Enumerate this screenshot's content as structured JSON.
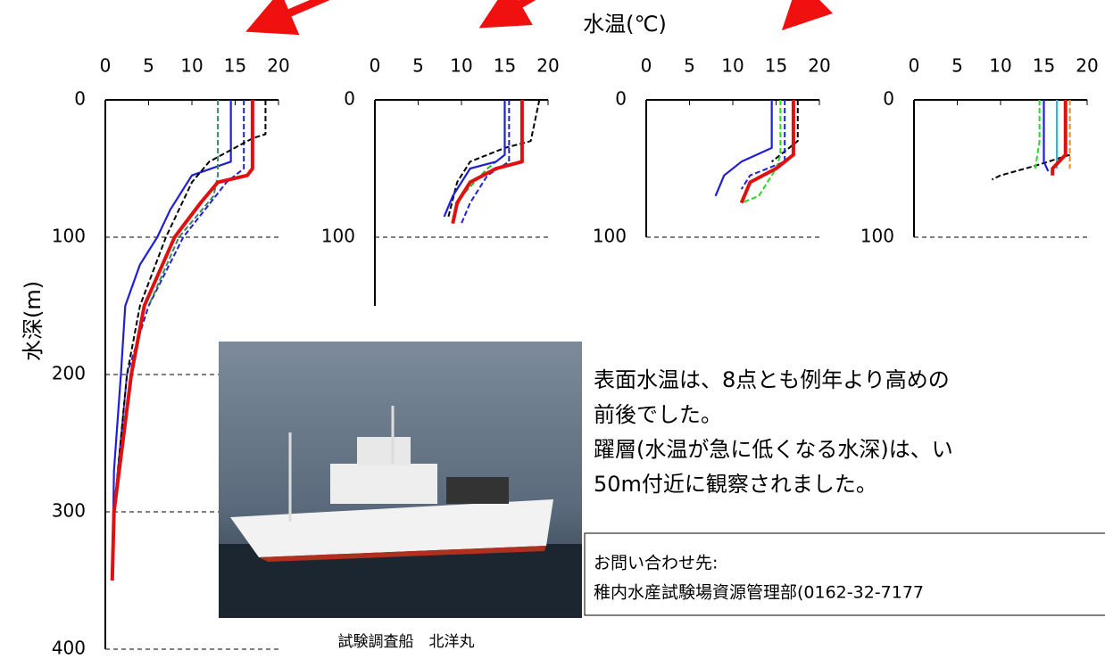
{
  "xlabel": "水温(℃)",
  "ylabel": "水深(m)",
  "caption": "試験調査船　北洋丸",
  "note": [
    "表面水温は、8点とも例年より高めの",
    "前後でした。",
    "躍層(水温が急に低くなる水深)は、い",
    "50m付近に観察されました。"
  ],
  "contact": {
    "title": "お問い合わせ先:",
    "body": "稚内水産試験場資源管理部(0162-32-7177"
  },
  "chart_data": [
    {
      "type": "line",
      "xlim": [
        0,
        20
      ],
      "xticks": [
        0,
        5,
        10,
        15,
        20
      ],
      "ylim": [
        0,
        400
      ],
      "yticks": [
        0,
        100,
        200,
        300,
        400
      ],
      "y_reversed": true,
      "grid": true,
      "series": [
        {
          "color": "#1f1fd6",
          "style": "solid",
          "x": [
            14.5,
            14.5,
            10,
            7.5,
            6,
            4,
            2.3,
            1.8,
            1,
            0.8
          ],
          "y": [
            0,
            45,
            55,
            80,
            100,
            120,
            150,
            200,
            270,
            350
          ]
        },
        {
          "color": "#1f1fd6",
          "style": "dashed",
          "x": [
            16,
            16,
            14,
            9,
            5,
            2.5,
            1,
            0.8
          ],
          "y": [
            0,
            50,
            60,
            100,
            150,
            200,
            300,
            350
          ]
        },
        {
          "color": "#000000",
          "style": "dashed",
          "x": [
            18.5,
            18.5,
            17,
            12,
            10,
            7,
            4,
            2.5,
            1
          ],
          "y": [
            0,
            25,
            28,
            45,
            60,
            100,
            150,
            200,
            300
          ]
        },
        {
          "color": "#3a8a5a",
          "style": "dashed",
          "x": [
            13,
            13,
            12.5,
            8.5,
            5
          ],
          "y": [
            0,
            55,
            70,
            100,
            150
          ]
        },
        {
          "color": "#e01010",
          "style": "thick",
          "x": [
            17,
            17,
            16.4,
            13,
            11,
            8,
            4.5,
            3,
            2,
            1,
            0.8
          ],
          "y": [
            0,
            50,
            55,
            60,
            75,
            100,
            150,
            200,
            250,
            300,
            350
          ]
        }
      ]
    },
    {
      "type": "line",
      "xlim": [
        0,
        20
      ],
      "xticks": [
        0,
        5,
        10,
        15,
        20
      ],
      "ylim": [
        0,
        150
      ],
      "yticks": [
        0,
        100
      ],
      "y_reversed": true,
      "grid": true,
      "series": [
        {
          "color": "#000000",
          "style": "dashed",
          "x": [
            19,
            18,
            15,
            11,
            9.5,
            8.5
          ],
          "y": [
            0,
            30,
            35,
            45,
            60,
            85
          ]
        },
        {
          "color": "#22bb22",
          "style": "dashed",
          "x": [
            15,
            15,
            13,
            10,
            9
          ],
          "y": [
            0,
            40,
            50,
            70,
            85
          ]
        },
        {
          "color": "#1f1fd6",
          "style": "dashed",
          "x": [
            15.5,
            15.5,
            13,
            11,
            10
          ],
          "y": [
            0,
            45,
            55,
            75,
            90
          ]
        },
        {
          "color": "#1f1fd6",
          "style": "solid",
          "x": [
            15,
            15,
            14,
            11,
            9,
            8
          ],
          "y": [
            0,
            40,
            45,
            50,
            70,
            85
          ]
        },
        {
          "color": "#e01010",
          "style": "thick",
          "x": [
            17,
            17,
            14,
            11,
            9.5,
            9
          ],
          "y": [
            0,
            45,
            50,
            60,
            75,
            90
          ]
        }
      ]
    },
    {
      "type": "line",
      "xlim": [
        0,
        20
      ],
      "xticks": [
        0,
        5,
        10,
        15,
        20
      ],
      "ylim": [
        0,
        100
      ],
      "yticks": [
        0,
        100
      ],
      "y_reversed": true,
      "grid": true,
      "series": [
        {
          "color": "#000000",
          "style": "dashed",
          "x": [
            17.5,
            17.5,
            14.5
          ],
          "y": [
            0,
            30,
            45
          ]
        },
        {
          "color": "#1f1fd6",
          "style": "dashed",
          "x": [
            16,
            16,
            12,
            11
          ],
          "y": [
            0,
            45,
            55,
            65
          ]
        },
        {
          "color": "#22dd22",
          "style": "dashed",
          "x": [
            15.5,
            15.5,
            15,
            13,
            11
          ],
          "y": [
            0,
            40,
            50,
            70,
            75
          ]
        },
        {
          "color": "#1f1fd6",
          "style": "solid",
          "x": [
            14.5,
            14.5,
            11,
            9,
            8
          ],
          "y": [
            0,
            35,
            45,
            55,
            70
          ]
        },
        {
          "color": "#e01010",
          "style": "thick",
          "x": [
            17,
            17,
            15,
            12,
            11
          ],
          "y": [
            0,
            40,
            50,
            60,
            75
          ]
        }
      ]
    },
    {
      "type": "line",
      "xlim": [
        0,
        20
      ],
      "xticks": [
        0,
        5,
        10,
        15,
        20
      ],
      "ylim": [
        0,
        100
      ],
      "yticks": [
        0,
        100
      ],
      "y_reversed": true,
      "grid": true,
      "series": [
        {
          "color": "#000000",
          "style": "dashed",
          "x": [
            18,
            14,
            10,
            9
          ],
          "y": [
            40,
            48,
            55,
            58
          ]
        },
        {
          "color": "#22dd22",
          "style": "dashed",
          "x": [
            14.5,
            14.5,
            14
          ],
          "y": [
            0,
            30,
            50
          ]
        },
        {
          "color": "#1f1fd6",
          "style": "solid",
          "x": [
            15,
            15,
            15.5
          ],
          "y": [
            0,
            45,
            52
          ]
        },
        {
          "color": "#22bbee",
          "style": "solid",
          "x": [
            16.5,
            16.5
          ],
          "y": [
            0,
            50
          ]
        },
        {
          "color": "#ee8822",
          "style": "dashed",
          "x": [
            18,
            18
          ],
          "y": [
            0,
            50
          ]
        },
        {
          "color": "#e01010",
          "style": "thick",
          "x": [
            17.5,
            17.5,
            16,
            16
          ],
          "y": [
            0,
            40,
            50,
            55
          ]
        }
      ]
    }
  ]
}
